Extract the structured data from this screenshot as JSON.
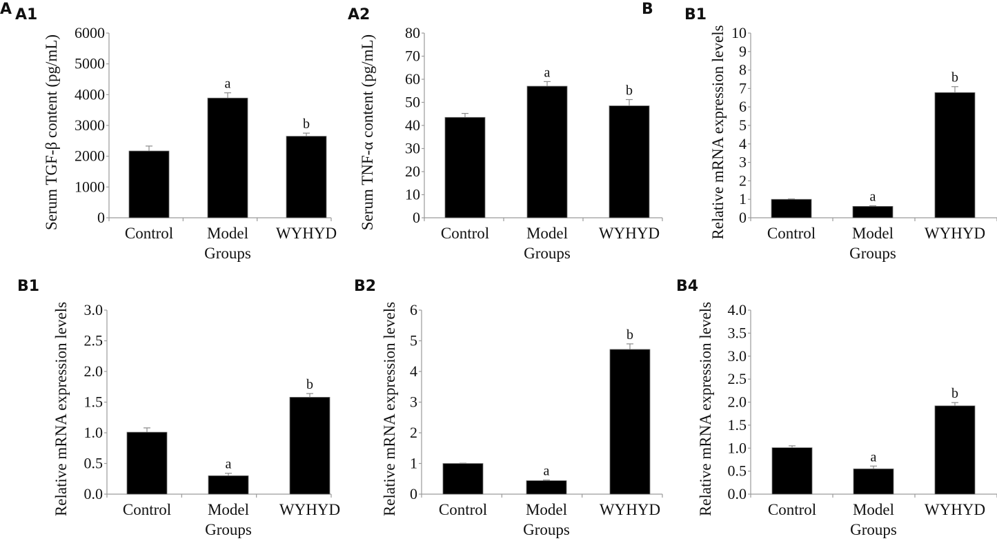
{
  "figure_labels": {
    "A": "A",
    "B": "B"
  },
  "chart_data": [
    {
      "type": "bar",
      "panel": "A1",
      "title": "",
      "xlabel": "Groups",
      "ylabel": "Serum TGF-β content (pg/mL)",
      "categories": [
        "Control",
        "Model",
        "WYHYD"
      ],
      "values": [
        2170,
        3890,
        2650
      ],
      "error_upper": [
        2330,
        4060,
        2750
      ],
      "significance": [
        "",
        "a",
        "b"
      ],
      "ylim": [
        0,
        6000
      ],
      "yticks": [
        0,
        1000,
        2000,
        3000,
        4000,
        5000,
        6000
      ],
      "ytick_labels": [
        "0",
        "1000",
        "2000",
        "3000",
        "4000",
        "5000",
        "6000"
      ],
      "grid": false,
      "bar_color": "#000000"
    },
    {
      "type": "bar",
      "panel": "A2",
      "title": "",
      "xlabel": "Groups",
      "ylabel": "Serum TNF-α content (pg/mL)",
      "categories": [
        "Control",
        "Model",
        "WYHYD"
      ],
      "values": [
        43.5,
        57,
        48.5
      ],
      "error_upper": [
        45.2,
        59,
        51.2
      ],
      "significance": [
        "",
        "a",
        "b"
      ],
      "ylim": [
        0,
        80
      ],
      "yticks": [
        0,
        10,
        20,
        30,
        40,
        50,
        60,
        70,
        80
      ],
      "ytick_labels": [
        "0",
        "10",
        "20",
        "30",
        "40",
        "50",
        "60",
        "70",
        "80"
      ],
      "grid": false,
      "bar_color": "#000000"
    },
    {
      "type": "bar",
      "panel": "B1",
      "title": "",
      "xlabel": "Groups",
      "ylabel": "Relative mRNA expression levels",
      "categories": [
        "Control",
        "Model",
        "WYHYD"
      ],
      "values": [
        1.0,
        0.62,
        6.78
      ],
      "error_upper": [
        1.02,
        0.65,
        7.1
      ],
      "significance": [
        "",
        "a",
        "b"
      ],
      "ylim": [
        0,
        10
      ],
      "yticks": [
        0,
        1,
        2,
        3,
        4,
        5,
        6,
        7,
        8,
        9,
        10
      ],
      "ytick_labels": [
        "0",
        "1",
        "2",
        "3",
        "4",
        "5",
        "6",
        "7",
        "8",
        "9",
        "10"
      ],
      "grid": false,
      "bar_color": "#000000"
    },
    {
      "type": "bar",
      "panel": "B1",
      "title": "",
      "xlabel": "Groups",
      "ylabel": "Relative mRNA expression levels",
      "categories": [
        "Control",
        "Model",
        "WYHYD"
      ],
      "values": [
        1.01,
        0.3,
        1.58
      ],
      "error_upper": [
        1.08,
        0.34,
        1.64
      ],
      "significance": [
        "",
        "a",
        "b"
      ],
      "ylim": [
        0,
        3.0
      ],
      "yticks": [
        0,
        0.5,
        1.0,
        1.5,
        2.0,
        2.5,
        3.0
      ],
      "ytick_labels": [
        "0.0",
        "0.5",
        "1.0",
        "1.5",
        "2.0",
        "2.5",
        "3.0"
      ],
      "grid": false,
      "bar_color": "#000000"
    },
    {
      "type": "bar",
      "panel": "B2",
      "title": "",
      "xlabel": "Groups",
      "ylabel": "Relative mRNA expression levels",
      "categories": [
        "Control",
        "Model",
        "WYHYD"
      ],
      "values": [
        1.0,
        0.44,
        4.72
      ],
      "error_upper": [
        1.01,
        0.46,
        4.9
      ],
      "significance": [
        "",
        "a",
        "b"
      ],
      "ylim": [
        0,
        6
      ],
      "yticks": [
        0,
        1,
        2,
        3,
        4,
        5,
        6
      ],
      "ytick_labels": [
        "0",
        "1",
        "2",
        "3",
        "4",
        "5",
        "6"
      ],
      "grid": false,
      "bar_color": "#000000"
    },
    {
      "type": "bar",
      "panel": "B4",
      "title": "",
      "xlabel": "Groups",
      "ylabel": "Relative mRNA expression levels",
      "categories": [
        "Control",
        "Model",
        "WYHYD"
      ],
      "values": [
        1.01,
        0.55,
        1.92
      ],
      "error_upper": [
        1.05,
        0.61,
        1.99
      ],
      "significance": [
        "",
        "a",
        "b"
      ],
      "ylim": [
        0,
        4.0
      ],
      "yticks": [
        0,
        0.5,
        1.0,
        1.5,
        2.0,
        2.5,
        3.0,
        3.5,
        4.0
      ],
      "ytick_labels": [
        "0.0",
        "0.5",
        "1.0",
        "1.5",
        "2.0",
        "2.5",
        "3.0",
        "3.5",
        "4.0"
      ],
      "grid": false,
      "bar_color": "#000000"
    }
  ]
}
